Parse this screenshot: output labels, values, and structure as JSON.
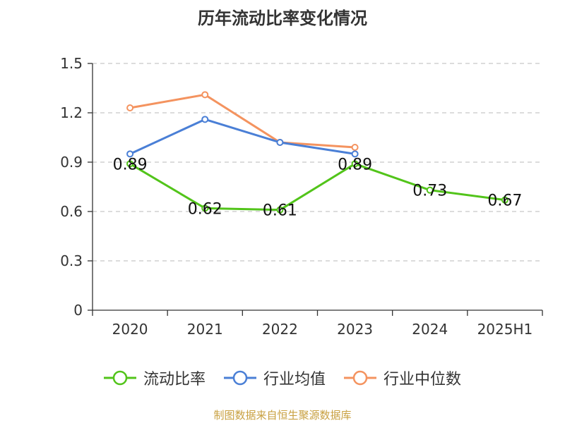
{
  "chart_data": {
    "type": "line",
    "title": "历年流动比率变化情况",
    "categories": [
      "2020",
      "2021",
      "2022",
      "2023",
      "2024",
      "2025H1"
    ],
    "ylim": [
      0,
      1.5
    ],
    "yticks": [
      "0",
      "0.3",
      "0.6",
      "0.9",
      "1.2",
      "1.5"
    ],
    "grid": true,
    "legend_position": "bottom",
    "series": [
      {
        "name": "流动比率",
        "color": "#52c41a",
        "values": [
          0.89,
          0.62,
          0.61,
          0.89,
          0.73,
          0.67
        ],
        "labels": [
          "0.89",
          "0.62",
          "0.61",
          "0.89",
          "0.73",
          "0.67"
        ]
      },
      {
        "name": "行业均值",
        "color": "#4a7fd6",
        "values": [
          0.95,
          1.16,
          1.02,
          0.95,
          null,
          null
        ]
      },
      {
        "name": "行业中位数",
        "color": "#f4935f",
        "values": [
          1.23,
          1.31,
          1.02,
          0.99,
          null,
          null
        ]
      }
    ]
  },
  "footer": {
    "source": "制图数据来自恒生聚源数据库"
  }
}
